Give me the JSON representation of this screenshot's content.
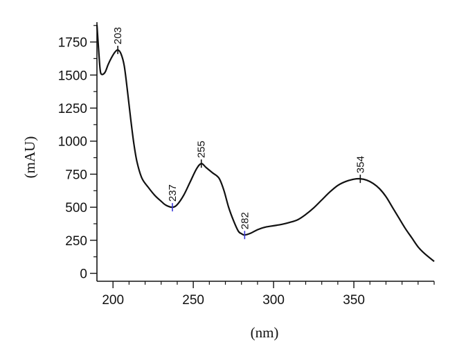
{
  "chart_data": {
    "type": "line",
    "xlabel": "(nm)",
    "ylabel": "(mAU)",
    "xlim": [
      190,
      400
    ],
    "ylim": [
      -60,
      1900
    ],
    "x_ticks": [
      200,
      250,
      300,
      350
    ],
    "y_ticks": [
      0,
      250,
      500,
      750,
      1000,
      1250,
      1500,
      1750
    ],
    "grid": false,
    "series": [
      {
        "color": "#111111",
        "points": [
          [
            190,
            1880
          ],
          [
            191,
            1700
          ],
          [
            192,
            1540
          ],
          [
            193,
            1505
          ],
          [
            195,
            1520
          ],
          [
            197,
            1580
          ],
          [
            199,
            1630
          ],
          [
            201,
            1670
          ],
          [
            203,
            1690
          ],
          [
            205,
            1660
          ],
          [
            207,
            1570
          ],
          [
            209,
            1380
          ],
          [
            211,
            1170
          ],
          [
            213,
            980
          ],
          [
            215,
            840
          ],
          [
            218,
            720
          ],
          [
            222,
            650
          ],
          [
            226,
            590
          ],
          [
            230,
            545
          ],
          [
            233,
            515
          ],
          [
            237,
            500
          ],
          [
            240,
            520
          ],
          [
            244,
            590
          ],
          [
            248,
            690
          ],
          [
            252,
            790
          ],
          [
            255,
            830
          ],
          [
            258,
            800
          ],
          [
            262,
            760
          ],
          [
            266,
            720
          ],
          [
            269,
            630
          ],
          [
            272,
            500
          ],
          [
            275,
            400
          ],
          [
            278,
            320
          ],
          [
            280,
            300
          ],
          [
            282,
            290
          ],
          [
            286,
            305
          ],
          [
            290,
            330
          ],
          [
            295,
            350
          ],
          [
            300,
            360
          ],
          [
            305,
            370
          ],
          [
            310,
            385
          ],
          [
            315,
            405
          ],
          [
            320,
            445
          ],
          [
            325,
            495
          ],
          [
            330,
            555
          ],
          [
            335,
            615
          ],
          [
            340,
            665
          ],
          [
            345,
            695
          ],
          [
            350,
            712
          ],
          [
            354,
            715
          ],
          [
            358,
            705
          ],
          [
            362,
            680
          ],
          [
            366,
            640
          ],
          [
            370,
            580
          ],
          [
            374,
            500
          ],
          [
            378,
            420
          ],
          [
            382,
            340
          ],
          [
            386,
            270
          ],
          [
            390,
            200
          ],
          [
            394,
            150
          ],
          [
            400,
            90
          ]
        ]
      }
    ],
    "annotations": [
      {
        "label": "203",
        "x": 203,
        "y": 1690,
        "marker_color": "#111111"
      },
      {
        "label": "237",
        "x": 237,
        "y": 500,
        "marker_color": "#3a3ad8"
      },
      {
        "label": "255",
        "x": 255,
        "y": 830,
        "marker_color": "#111111"
      },
      {
        "label": "282",
        "x": 282,
        "y": 290,
        "marker_color": "#3a3ad8"
      },
      {
        "label": "354",
        "x": 354,
        "y": 715,
        "marker_color": "#111111"
      }
    ]
  }
}
